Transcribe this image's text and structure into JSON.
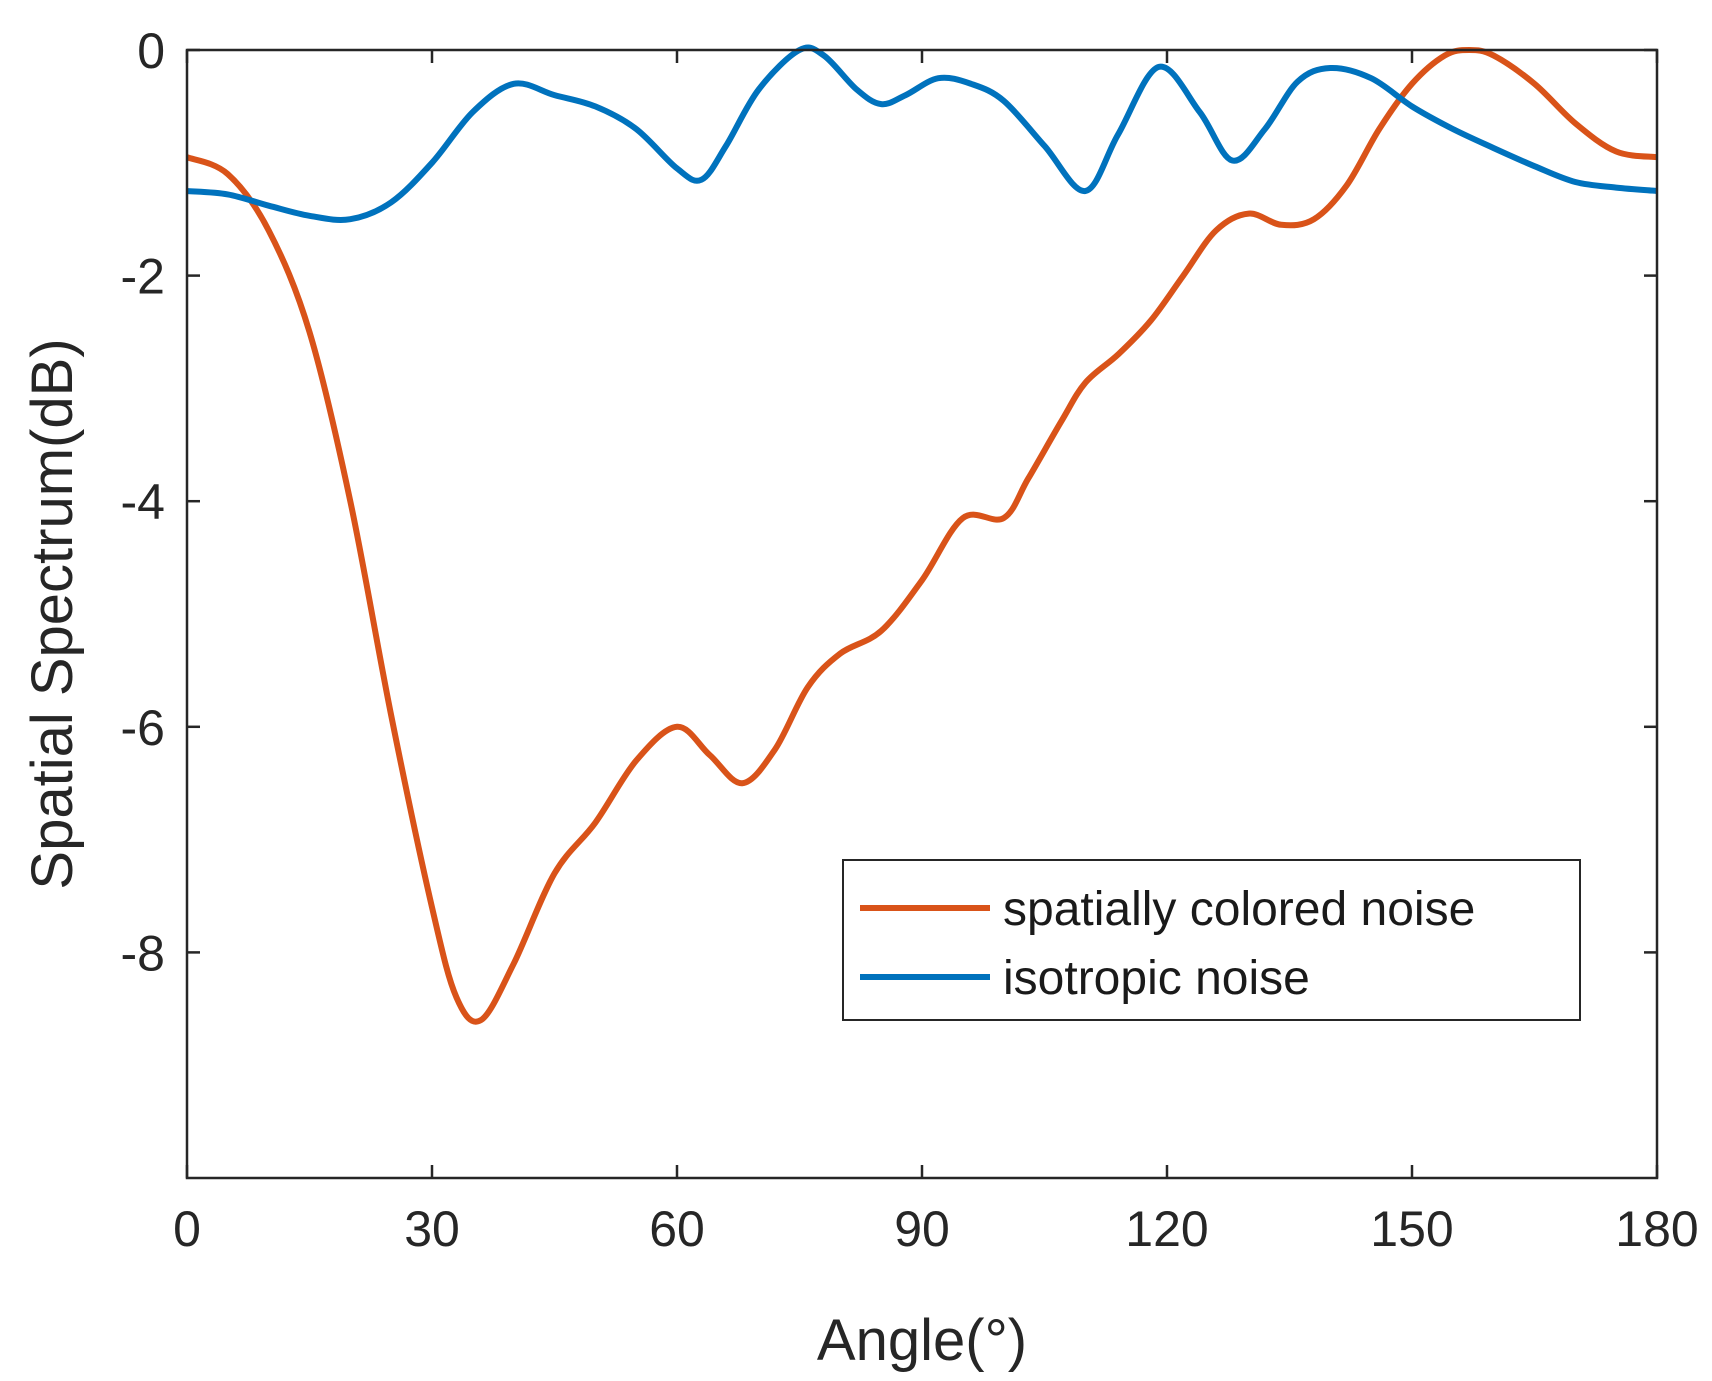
{
  "chart_data": {
    "type": "line",
    "title": "",
    "xlabel": "Angle(°)",
    "ylabel": "Spatial Spectrum(dB)",
    "xlim": [
      0,
      180
    ],
    "ylim": [
      -10,
      0
    ],
    "xticks": [
      0,
      30,
      60,
      90,
      120,
      150,
      180
    ],
    "yticks": [
      0,
      -2,
      -4,
      -6,
      -8
    ],
    "xtick_labels": [
      "0",
      "30",
      "60",
      "90",
      "120",
      "150",
      "180"
    ],
    "ytick_labels": [
      "0",
      "-2",
      "-4",
      "-6",
      "-8"
    ],
    "grid": false,
    "legend_position": "bottom-right",
    "series": [
      {
        "name": "spatially colored noise",
        "color": "#D95319",
        "x": [
          0,
          5,
          10,
          15,
          20,
          25,
          30,
          33,
          36,
          40,
          45,
          50,
          55,
          60,
          64,
          68,
          72,
          76,
          80,
          85,
          90,
          95,
          100,
          103,
          107,
          110,
          114,
          118,
          122,
          126,
          130,
          134,
          138,
          142,
          146,
          150,
          154,
          157,
          160,
          165,
          170,
          175,
          180
        ],
        "values": [
          -0.95,
          -1.1,
          -1.6,
          -2.5,
          -4.0,
          -5.9,
          -7.6,
          -8.4,
          -8.6,
          -8.1,
          -7.3,
          -6.85,
          -6.3,
          -6.0,
          -6.25,
          -6.5,
          -6.2,
          -5.65,
          -5.35,
          -5.15,
          -4.7,
          -4.15,
          -4.15,
          -3.8,
          -3.3,
          -2.95,
          -2.7,
          -2.4,
          -2.0,
          -1.6,
          -1.45,
          -1.55,
          -1.5,
          -1.2,
          -0.7,
          -0.3,
          -0.05,
          0.0,
          -0.05,
          -0.3,
          -0.65,
          -0.9,
          -0.95
        ]
      },
      {
        "name": "isotropic noise",
        "color": "#0072BD",
        "x": [
          0,
          5,
          10,
          15,
          20,
          25,
          30,
          35,
          40,
          45,
          50,
          55,
          60,
          63,
          66,
          70,
          75,
          78,
          82,
          85,
          88,
          92,
          96,
          100,
          105,
          110,
          114,
          119,
          124,
          128,
          132,
          136,
          140,
          145,
          150,
          155,
          160,
          165,
          170,
          175,
          180
        ],
        "values": [
          -1.25,
          -1.28,
          -1.38,
          -1.47,
          -1.5,
          -1.35,
          -1.0,
          -0.55,
          -0.3,
          -0.4,
          -0.5,
          -0.7,
          -1.05,
          -1.15,
          -0.85,
          -0.35,
          0.0,
          -0.05,
          -0.35,
          -0.48,
          -0.4,
          -0.25,
          -0.3,
          -0.45,
          -0.85,
          -1.25,
          -0.75,
          -0.15,
          -0.55,
          -0.98,
          -0.7,
          -0.28,
          -0.16,
          -0.25,
          -0.5,
          -0.7,
          -0.87,
          -1.03,
          -1.17,
          -1.22,
          -1.25
        ]
      }
    ]
  }
}
